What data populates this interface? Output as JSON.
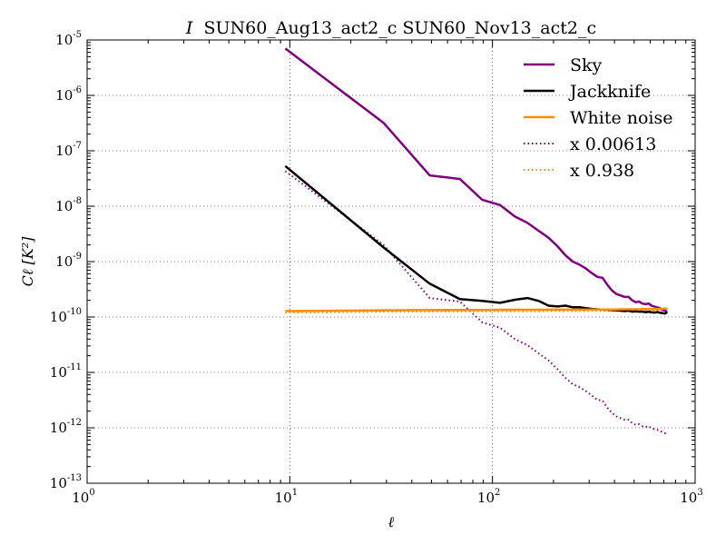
{
  "chart_data": {
    "type": "line",
    "title": "SUN60_Aug13_act2_c SUN60_Nov13_act2_c",
    "title_prefix": "I",
    "xlabel": "ℓ",
    "ylabel": "Cℓ [K²]",
    "xscale": "log",
    "yscale": "log",
    "xlim": [
      1,
      1000
    ],
    "ylim": [
      1e-13,
      1e-05
    ],
    "grid": true,
    "legend_position": "top-right",
    "x_ticks": [
      {
        "base": "10",
        "exp": "0",
        "value": 1
      },
      {
        "base": "10",
        "exp": "1",
        "value": 10
      },
      {
        "base": "10",
        "exp": "2",
        "value": 100
      },
      {
        "base": "10",
        "exp": "3",
        "value": 1000
      }
    ],
    "y_ticks": [
      {
        "base": "10",
        "exp": "-5",
        "value": 1e-05
      },
      {
        "base": "10",
        "exp": "-6",
        "value": 1e-06
      },
      {
        "base": "10",
        "exp": "-7",
        "value": 1e-07
      },
      {
        "base": "10",
        "exp": "-8",
        "value": 1e-08
      },
      {
        "base": "10",
        "exp": "-9",
        "value": 1e-09
      },
      {
        "base": "10",
        "exp": "-10",
        "value": 1e-10
      },
      {
        "base": "10",
        "exp": "-11",
        "value": 1e-11
      },
      {
        "base": "10",
        "exp": "-12",
        "value": 1e-12
      },
      {
        "base": "10",
        "exp": "-13",
        "value": 1e-13
      }
    ],
    "series": [
      {
        "name": "Sky",
        "color": "#800080",
        "style": "solid",
        "x": [
          9.5,
          29,
          49,
          69,
          89,
          109,
          129,
          149,
          169,
          189,
          209,
          229,
          249,
          269,
          289,
          309,
          329,
          349,
          369,
          389,
          409,
          429,
          449,
          469,
          489,
          509,
          529,
          549,
          569,
          589,
          609,
          629,
          649,
          669,
          689,
          709,
          729
        ],
        "y": [
          7e-06,
          3.2e-07,
          3.6e-08,
          3.1e-08,
          1.3e-08,
          1.05e-08,
          6.5e-09,
          5e-09,
          3.6e-09,
          2.7e-09,
          1.9e-09,
          1.3e-09,
          1e-09,
          8.8e-10,
          7.5e-10,
          6.2e-10,
          5.3e-10,
          5.1e-10,
          3.8e-10,
          3e-10,
          2.6e-10,
          2.45e-10,
          2.3e-10,
          2.3e-10,
          2e-10,
          1.85e-10,
          1.9e-10,
          1.75e-10,
          1.7e-10,
          1.75e-10,
          1.6e-10,
          1.55e-10,
          1.5e-10,
          1.45e-10,
          1.35e-10,
          1.3e-10,
          1.25e-10
        ]
      },
      {
        "name": "Jackknife",
        "color": "#000000",
        "style": "solid",
        "x": [
          9.5,
          29,
          49,
          69,
          89,
          109,
          129,
          149,
          169,
          189,
          209,
          229,
          249,
          269,
          289,
          309,
          329,
          349,
          369,
          389,
          409,
          429,
          449,
          469,
          489,
          509,
          529,
          549,
          569,
          589,
          609,
          629,
          649,
          669,
          689,
          709,
          729
        ],
        "y": [
          5.3e-08,
          1.8e-09,
          4e-10,
          2.1e-10,
          1.95e-10,
          1.8e-10,
          2.05e-10,
          2.2e-10,
          1.95e-10,
          1.6e-10,
          1.55e-10,
          1.6e-10,
          1.5e-10,
          1.5e-10,
          1.45e-10,
          1.4e-10,
          1.38e-10,
          1.36e-10,
          1.35e-10,
          1.33e-10,
          1.32e-10,
          1.3e-10,
          1.28e-10,
          1.3e-10,
          1.25e-10,
          1.27e-10,
          1.25e-10,
          1.25e-10,
          1.22e-10,
          1.24e-10,
          1.22e-10,
          1.2e-10,
          1.23e-10,
          1.2e-10,
          1.18e-10,
          1.15e-10,
          1.22e-10
        ]
      },
      {
        "name": "White noise",
        "color": "#ff8c00",
        "style": "solid",
        "x": [
          9.5,
          29,
          49,
          69,
          89,
          109,
          129,
          149,
          169,
          189,
          209,
          229,
          249,
          269,
          289,
          309,
          329,
          349,
          369,
          389,
          409,
          429,
          449,
          469,
          489,
          509,
          529,
          549,
          569,
          589,
          609,
          629,
          649,
          669,
          689,
          709,
          729
        ],
        "y": [
          1.28e-10,
          1.32e-10,
          1.33e-10,
          1.34e-10,
          1.34e-10,
          1.35e-10,
          1.35e-10,
          1.35e-10,
          1.35e-10,
          1.36e-10,
          1.36e-10,
          1.36e-10,
          1.36e-10,
          1.36e-10,
          1.36e-10,
          1.37e-10,
          1.37e-10,
          1.37e-10,
          1.37e-10,
          1.37e-10,
          1.37e-10,
          1.38e-10,
          1.38e-10,
          1.38e-10,
          1.38e-10,
          1.38e-10,
          1.38e-10,
          1.39e-10,
          1.39e-10,
          1.39e-10,
          1.39e-10,
          1.4e-10,
          1.4e-10,
          1.4e-10,
          1.41e-10,
          1.41e-10,
          1.42e-10
        ]
      },
      {
        "name": "x 0.00613",
        "color": "#800080",
        "style": "dotted",
        "x": [
          9.5,
          29,
          49,
          69,
          89,
          109,
          129,
          149,
          169,
          189,
          209,
          229,
          249,
          269,
          289,
          309,
          329,
          349,
          369,
          389,
          409,
          429,
          449,
          469,
          489,
          509,
          529,
          549,
          569,
          589,
          609,
          629,
          649,
          669,
          689,
          709,
          729
        ],
        "y": [
          4.3e-08,
          2e-09,
          2.2e-10,
          1.9e-10,
          8e-11,
          6.4e-11,
          4e-11,
          3.1e-11,
          2.2e-11,
          1.65e-11,
          1.15e-11,
          8e-12,
          6.1e-12,
          5.4e-12,
          4.6e-12,
          3.8e-12,
          3.2e-12,
          3.1e-12,
          2.3e-12,
          1.85e-12,
          1.6e-12,
          1.5e-12,
          1.4e-12,
          1.4e-12,
          1.22e-12,
          1.13e-12,
          1.16e-12,
          1.07e-12,
          1.04e-12,
          1.07e-12,
          9.8e-13,
          9.5e-13,
          9.2e-13,
          8.9e-13,
          8.3e-13,
          8e-13,
          7.7e-13
        ]
      },
      {
        "name": "x 0.938",
        "color": "#ff8c00",
        "style": "dotted",
        "x": [
          9.5,
          29,
          49,
          69,
          89,
          109,
          129,
          149,
          169,
          189,
          209,
          229,
          249,
          269,
          289,
          309,
          329,
          349,
          369,
          389,
          409,
          429,
          449,
          469,
          489,
          509,
          529,
          549,
          569,
          589,
          609,
          629,
          649,
          669,
          689,
          709,
          729
        ],
        "y": [
          1.2e-10,
          1.24e-10,
          1.25e-10,
          1.26e-10,
          1.26e-10,
          1.27e-10,
          1.27e-10,
          1.27e-10,
          1.27e-10,
          1.28e-10,
          1.28e-10,
          1.28e-10,
          1.28e-10,
          1.28e-10,
          1.28e-10,
          1.29e-10,
          1.29e-10,
          1.29e-10,
          1.29e-10,
          1.29e-10,
          1.29e-10,
          1.29e-10,
          1.29e-10,
          1.29e-10,
          1.29e-10,
          1.29e-10,
          1.29e-10,
          1.3e-10,
          1.3e-10,
          1.3e-10,
          1.3e-10,
          1.31e-10,
          1.31e-10,
          1.31e-10,
          1.32e-10,
          1.32e-10,
          1.33e-10
        ]
      }
    ]
  }
}
